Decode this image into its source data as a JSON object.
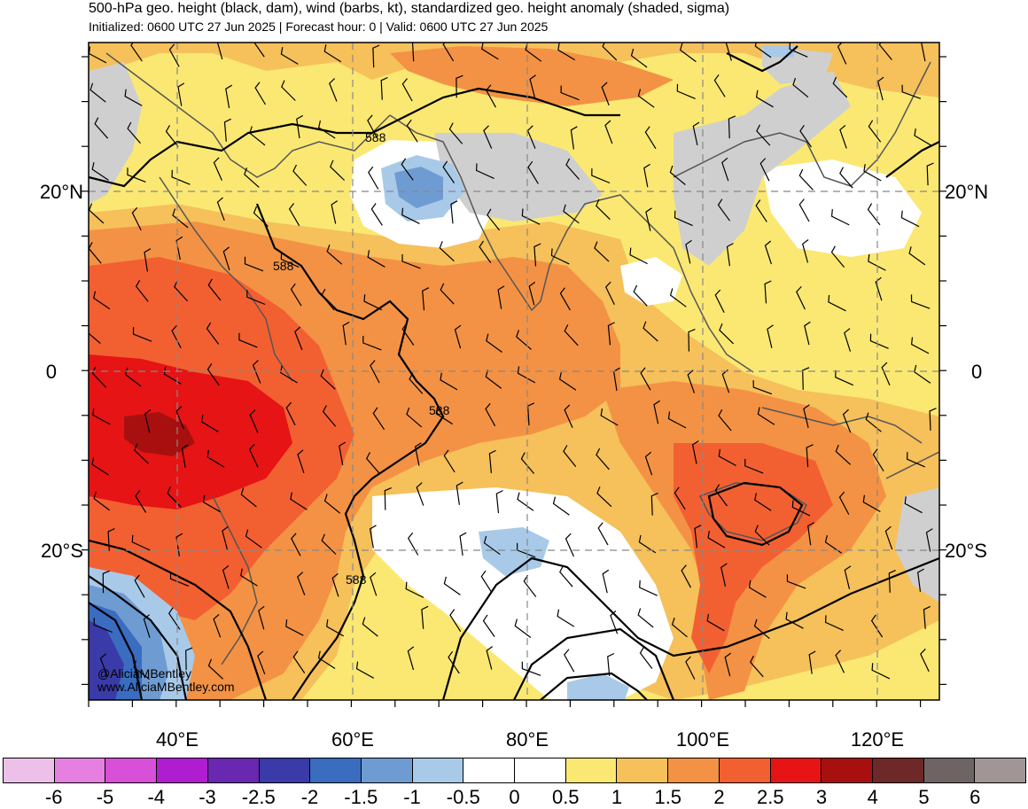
{
  "title": "500-hPa geo. height (black, dam), wind (barbs, kt), standardized geo. height anomaly (shaded, sigma)",
  "subtitle": "Initialized: 0600 UTC 27 Jun 2025 | Forecast hour: 0 | Valid: 0600 UTC 27 Jun 2025",
  "axes": {
    "lat_left": [
      "20°N",
      "0",
      "20°S"
    ],
    "lat_right": [
      "20°N",
      "0",
      "20°S"
    ],
    "lon_bottom": [
      "40°E",
      "60°E",
      "80°E",
      "100°E",
      "120°E"
    ]
  },
  "contour_labels": [
    "588",
    "588",
    "588",
    "588"
  ],
  "credits": {
    "handle": "@AliciaMBentley",
    "site": "www.AliciaMBentley.com"
  },
  "colorbar": {
    "colors": [
      "#ecc0e8",
      "#e680e0",
      "#d84fd8",
      "#b01cd0",
      "#6a28b0",
      "#3a3aa8",
      "#3a6cc0",
      "#6e9cd2",
      "#a8cae8",
      "#ffffff",
      "#ffffff",
      "#fae873",
      "#f6c05a",
      "#f39244",
      "#f26032",
      "#e61414",
      "#a81010",
      "#6e2828",
      "#6e6464",
      "#a09696"
    ],
    "labels": [
      "-6",
      "-5",
      "-4",
      "-3",
      "-2.5",
      "-2",
      "-1.5",
      "-1",
      "-0.5",
      "0",
      "0.5",
      "1",
      "1.5",
      "2",
      "2.5",
      "3",
      "4",
      "5",
      "6"
    ]
  },
  "palette": {
    "missing": "#cfcfcf",
    "zero": "#ffffff",
    "p05": "#fae873",
    "p1": "#f6c05a",
    "p15": "#f39244",
    "p2": "#f26032",
    "p25": "#e61414",
    "p3": "#a81010",
    "m05": "#a8cae8",
    "m1": "#6e9cd2",
    "m15": "#3a6cc0",
    "m2": "#3a3aa8"
  }
}
